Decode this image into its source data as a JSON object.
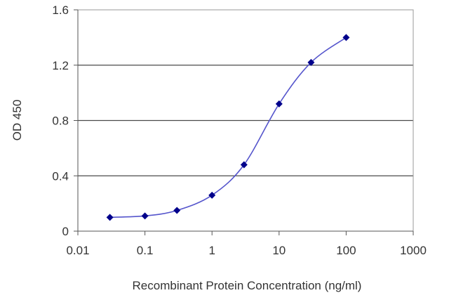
{
  "chart_data": {
    "type": "line",
    "xlabel": "Recombinant Protein Concentration (ng/ml)",
    "ylabel": "OD 450",
    "x_scale": "log",
    "xlim": [
      0.01,
      1000
    ],
    "ylim": [
      0,
      1.6
    ],
    "x_ticks": [
      0.01,
      0.1,
      1,
      10,
      100,
      1000
    ],
    "x_tick_labels": [
      "0.01",
      "0.1",
      "1",
      "10",
      "100",
      "1000"
    ],
    "y_ticks": [
      0,
      0.4,
      0.8,
      1.2,
      1.6
    ],
    "y_tick_labels": [
      "0",
      "0.4",
      "0.8",
      "1.2",
      "1.6"
    ],
    "grid": "horizontal",
    "legend": "none",
    "series": [
      {
        "x": [
          0.03,
          0.1,
          0.3,
          1,
          3,
          10,
          30,
          100
        ],
        "y": [
          0.1,
          0.11,
          0.15,
          0.26,
          0.48,
          0.92,
          1.22,
          1.4
        ],
        "color": "#00008b",
        "line_color": "#5555cc"
      }
    ]
  }
}
